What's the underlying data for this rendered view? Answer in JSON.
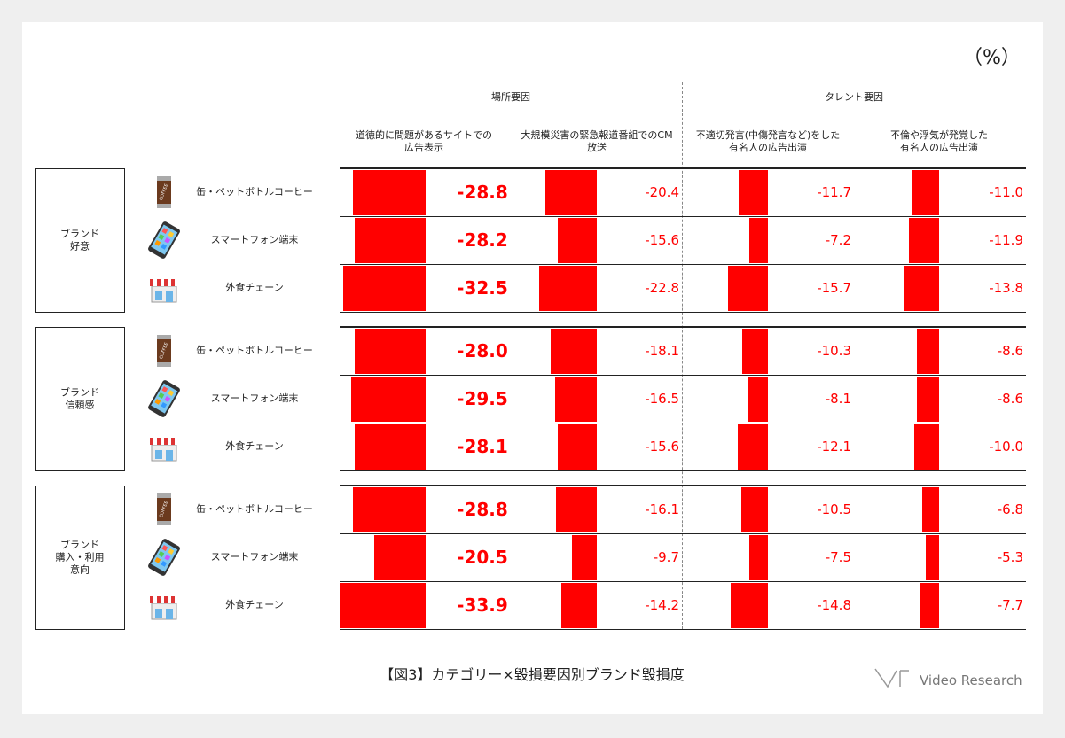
{
  "chart_data": {
    "type": "bar",
    "unit_label": "（%）",
    "caption": "【図3】カテゴリー×毀損要因別ブランド毀損度",
    "logo": "Video Research",
    "column_groups": [
      "場所要因",
      "タレント要因"
    ],
    "row_groups": [
      "ブランド\n好意",
      "ブランド\n信頼感",
      "ブランド\n購入・利用\n意向"
    ],
    "categories": [
      "缶・ペットボトルコーヒー",
      "スマートフォン端末",
      "外食チェーン",
      "缶・ペットボトルコーヒー",
      "スマートフォン端末",
      "外食チェーン",
      "缶・ペットボトルコーヒー",
      "スマートフォン端末",
      "外食チェーン"
    ],
    "series": [
      {
        "name": "道徳的に問題があるサイトでの\n広告表示",
        "color": "#ff0000",
        "values": [
          -28.8,
          -28.2,
          -32.5,
          -28.0,
          -29.5,
          -28.1,
          -28.8,
          -20.5,
          -33.9
        ],
        "value_labels": [
          "-28.8",
          "-28.2",
          "-32.5",
          "-28.0",
          "-29.5",
          "-28.1",
          "-28.8",
          "-20.5",
          "-33.9"
        ]
      },
      {
        "name": "大規模災害の緊急報道番組でのCM\n放送",
        "color": "#ff0000",
        "values": [
          -20.4,
          -15.6,
          -22.8,
          -18.1,
          -16.5,
          -15.6,
          -16.1,
          -9.7,
          -14.2
        ],
        "value_labels": [
          "-20.4",
          "-15.6",
          "-22.8",
          "-18.1",
          "-16.5",
          "-15.6",
          "-16.1",
          "-9.7",
          "-14.2"
        ]
      },
      {
        "name": "不適切発言(中傷発言など)をした\n有名人の広告出演",
        "color": "#ff0000",
        "values": [
          -11.7,
          -7.2,
          -15.7,
          -10.3,
          -8.1,
          -12.1,
          -10.5,
          -7.5,
          -14.8
        ],
        "value_labels": [
          "-11.7",
          "-7.2",
          "-15.7",
          "-10.3",
          "-8.1",
          "-12.1",
          "-10.5",
          "-7.5",
          "-14.8"
        ]
      },
      {
        "name": "不倫や浮気が発覚した\n有名人の広告出演",
        "color": "#ff0000",
        "values": [
          -11.0,
          -11.9,
          -13.8,
          -8.6,
          -8.6,
          -10.0,
          -6.8,
          -5.3,
          -7.7
        ],
        "value_labels": [
          "-11.0",
          "-11.9",
          "-13.8",
          "-8.6",
          "-8.6",
          "-10.0",
          "-6.8",
          "-5.3",
          "-7.7"
        ]
      }
    ]
  }
}
